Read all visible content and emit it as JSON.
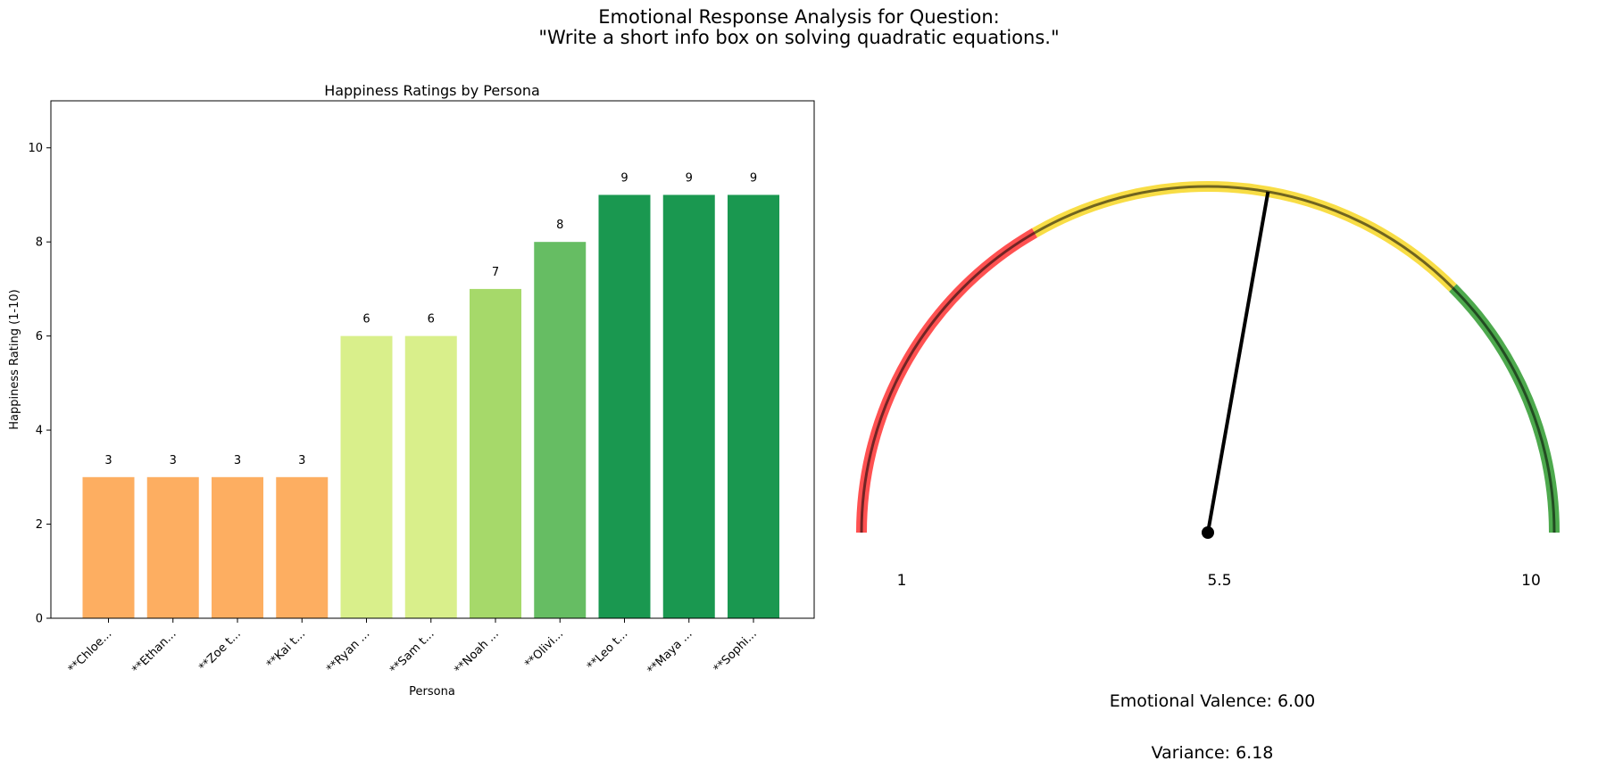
{
  "figure": {
    "title_line1": "Emotional Response Analysis for Question:",
    "title_line2": "\"Write a short info box on solving quadratic equations.\""
  },
  "chart_data": [
    {
      "type": "bar",
      "title": "Happiness Ratings by Persona",
      "xlabel": "Persona",
      "ylabel": "Happiness Rating (1-10)",
      "ylim": [
        0,
        11
      ],
      "yticks": [
        0,
        2,
        4,
        6,
        8,
        10
      ],
      "grid": false,
      "categories": [
        "**Chloe...",
        "**Ethan...",
        "**Zoe t...",
        "**Kai t...",
        "**Ryan ...",
        "**Sam t...",
        "**Noah ...",
        "**Olivi...",
        "**Leo t...",
        "**Maya ...",
        "**Sophi..."
      ],
      "values": [
        3,
        3,
        3,
        3,
        6,
        6,
        7,
        8,
        9,
        9,
        9
      ],
      "bar_colors": [
        "#fdae61",
        "#fdae61",
        "#fdae61",
        "#fdae61",
        "#d9ef8b",
        "#d9ef8b",
        "#a6d96a",
        "#66bd63",
        "#1a9850",
        "#1a9850",
        "#1a9850"
      ],
      "data_labels": [
        "3",
        "3",
        "3",
        "3",
        "6",
        "6",
        "7",
        "8",
        "9",
        "9",
        "9"
      ]
    },
    {
      "type": "gauge",
      "min": 1,
      "max": 10,
      "value": 6.0,
      "tick_labels": [
        "1",
        "5.5",
        "10"
      ],
      "zones": [
        {
          "from": 1,
          "to": 4,
          "color": "#ff3333"
        },
        {
          "from": 4,
          "to": 7.75,
          "color": "#f7d724"
        },
        {
          "from": 7.75,
          "to": 10,
          "color": "#2e9a2e"
        }
      ],
      "valence_text": "Emotional Valence: 6.00",
      "variance_text": "Variance: 6.18"
    }
  ]
}
